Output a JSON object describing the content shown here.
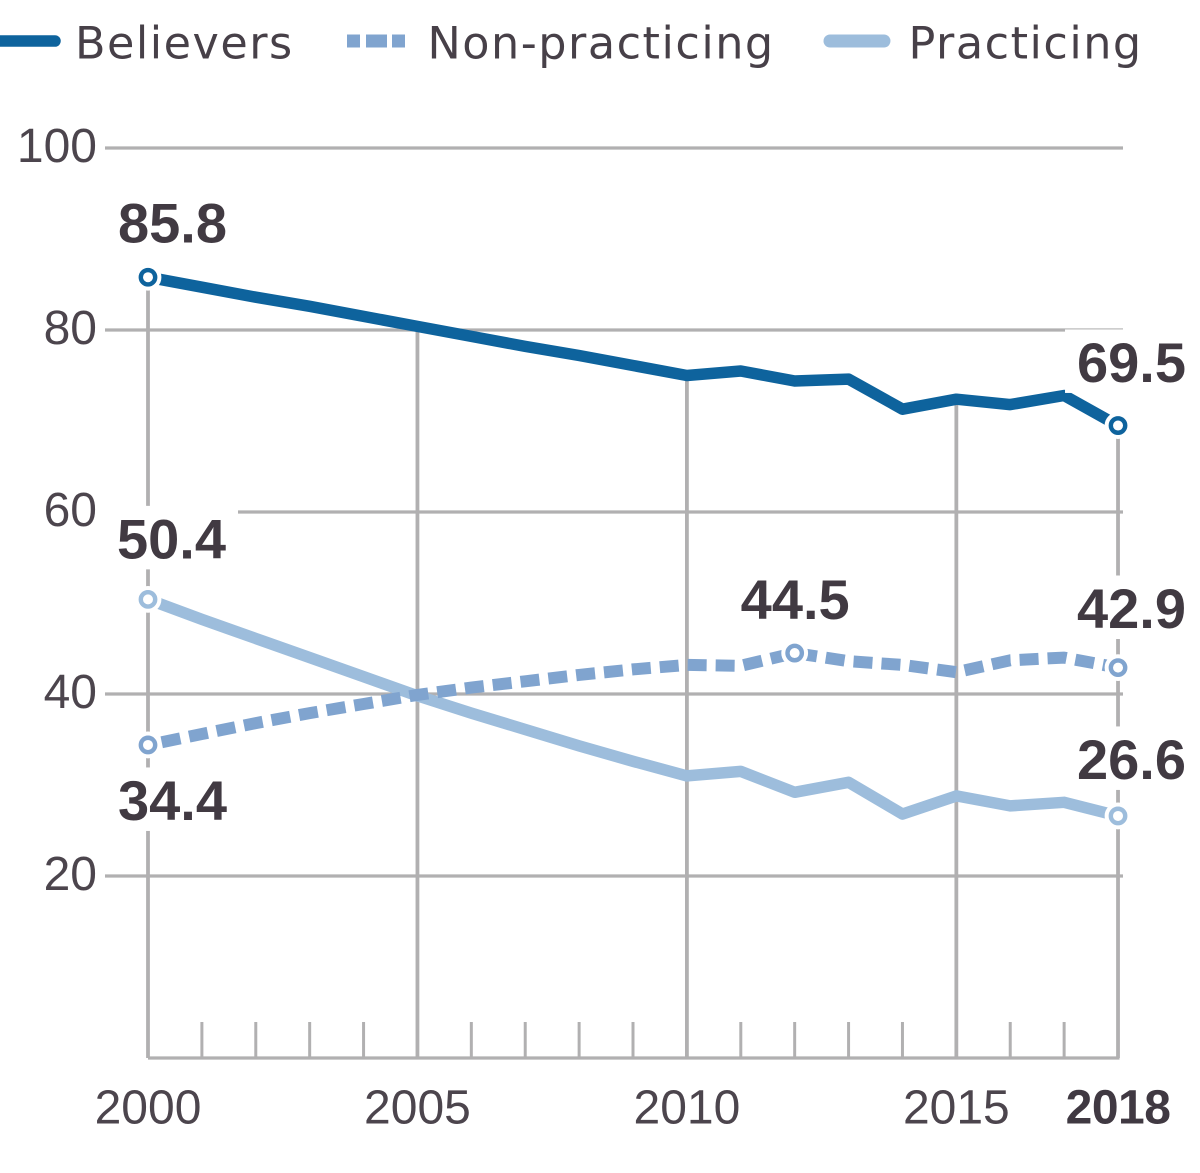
{
  "chart_data": {
    "type": "line",
    "title": "",
    "x_label": "",
    "y_label": "",
    "x": [
      2000,
      2001,
      2002,
      2003,
      2004,
      2005,
      2006,
      2007,
      2008,
      2009,
      2010,
      2011,
      2012,
      2013,
      2014,
      2015,
      2016,
      2017,
      2018
    ],
    "series": [
      {
        "name": "Believers",
        "style": "solid",
        "color": "#0C629C",
        "values": [
          85.8,
          84.7,
          83.6,
          82.6,
          81.5,
          80.4,
          79.3,
          78.2,
          77.2,
          76.1,
          75.0,
          75.5,
          74.4,
          74.6,
          71.3,
          72.4,
          71.8,
          72.8,
          69.5
        ]
      },
      {
        "name": "Non-practicing",
        "style": "dashed",
        "color": "#7FA3CF",
        "values": [
          34.4,
          35.6,
          36.8,
          37.9,
          38.9,
          39.9,
          40.7,
          41.4,
          42.1,
          42.7,
          43.2,
          43.1,
          44.5,
          43.6,
          43.2,
          42.4,
          43.7,
          44.0,
          42.9
        ]
      },
      {
        "name": "Practicing",
        "style": "solid",
        "color": "#9CBDDC",
        "values": [
          50.4,
          48.2,
          46.1,
          44.0,
          41.9,
          39.8,
          37.9,
          36.1,
          34.3,
          32.6,
          31.0,
          31.5,
          29.2,
          30.3,
          26.8,
          28.8,
          27.7,
          28.1,
          26.6
        ]
      }
    ],
    "markers": [
      {
        "series": "Believers",
        "year": 2000
      },
      {
        "series": "Believers",
        "year": 2018
      },
      {
        "series": "Non-practicing",
        "year": 2000
      },
      {
        "series": "Non-practicing",
        "year": 2012
      },
      {
        "series": "Non-practicing",
        "year": 2018
      },
      {
        "series": "Practicing",
        "year": 2000
      },
      {
        "series": "Practicing",
        "year": 2018
      }
    ],
    "value_labels": [
      {
        "series": "Believers",
        "year": 2000,
        "text": "85.8"
      },
      {
        "series": "Believers",
        "year": 2018,
        "text": "69.5"
      },
      {
        "series": "Non-practicing",
        "year": 2000,
        "text": "34.4"
      },
      {
        "series": "Non-practicing",
        "year": 2012,
        "text": "44.5"
      },
      {
        "series": "Non-practicing",
        "year": 2018,
        "text": "42.9"
      },
      {
        "series": "Practicing",
        "year": 2000,
        "text": "50.4"
      },
      {
        "series": "Practicing",
        "year": 2018,
        "text": "26.6"
      }
    ],
    "y_ticks": [
      {
        "value": 100,
        "label": "100"
      },
      {
        "value": 80,
        "label": "80"
      },
      {
        "value": 60,
        "label": "60"
      },
      {
        "value": 40,
        "label": "40"
      },
      {
        "value": 20,
        "label": "20"
      }
    ],
    "x_ticks_major": [
      {
        "value": 2000,
        "label": "2000",
        "bold": false
      },
      {
        "value": 2005,
        "label": "2005",
        "bold": false
      },
      {
        "value": 2010,
        "label": "2010",
        "bold": false
      },
      {
        "value": 2015,
        "label": "2015",
        "bold": false
      },
      {
        "value": 2018,
        "label": "2018",
        "bold": true
      }
    ],
    "ylim": [
      0,
      100
    ],
    "grid": true,
    "legend_position": "top"
  },
  "legend": {
    "items": [
      {
        "label": "Believers",
        "style": "solid",
        "color": "#0C629C"
      },
      {
        "label": "Non-practicing",
        "style": "dashed",
        "color": "#7FA3CF"
      },
      {
        "label": "Practicing",
        "style": "solid",
        "color": "#9CBDDC"
      }
    ]
  },
  "colors": {
    "background": "#FFFFFF",
    "grid": "#B1B0B1",
    "axis_tick_text": "#4A434B",
    "axis_tick_text_bold": "#3E3740",
    "value_label_text": "#3F3840",
    "legend_text": "#453E46"
  }
}
